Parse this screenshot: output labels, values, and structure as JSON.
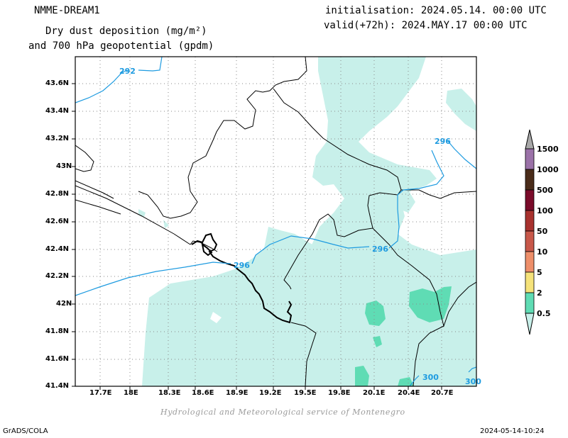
{
  "header": {
    "model": "NMME-DREAM1",
    "title_line1": "Dry dust deposition (mg/m²)",
    "title_line2": "and 700 hPa geopotential (gpdm)",
    "init": "initialisation: 2024.05.14. 00:00 UTC",
    "valid": "valid(+72h): 2024.MAY.17 00:00 UTC"
  },
  "axes": {
    "lat_labels": [
      "43.6N",
      "43.4N",
      "43.2N",
      "43N",
      "42.8N",
      "42.6N",
      "42.4N",
      "42.2N",
      "42N",
      "41.8N",
      "41.6N",
      "41.4N"
    ],
    "lon_labels": [
      "17.7E",
      "18E",
      "18.3E",
      "18.6E",
      "18.9E",
      "19.2E",
      "19.5E",
      "19.8E",
      "20.1E",
      "20.4E",
      "20.7E"
    ]
  },
  "contours": {
    "labels": [
      "292",
      "296",
      "296",
      "296",
      "300",
      "300"
    ],
    "color": "#1e9be0"
  },
  "colorbar": {
    "levels": [
      "1500",
      "1000",
      "500",
      "100",
      "50",
      "10",
      "5",
      "2",
      "0.5"
    ],
    "colors": [
      "#9b72a8",
      "#4a2c1a",
      "#7a0b2a",
      "#a8322e",
      "#c8584a",
      "#ee8f6a",
      "#f5e27a",
      "#5fdcb4",
      "#c8f0ea"
    ]
  },
  "credit": "Hydrological and Meteorological service of Montenegro",
  "footer": {
    "left": "GrADS/COLA",
    "right": "2024-05-14-10:24"
  }
}
